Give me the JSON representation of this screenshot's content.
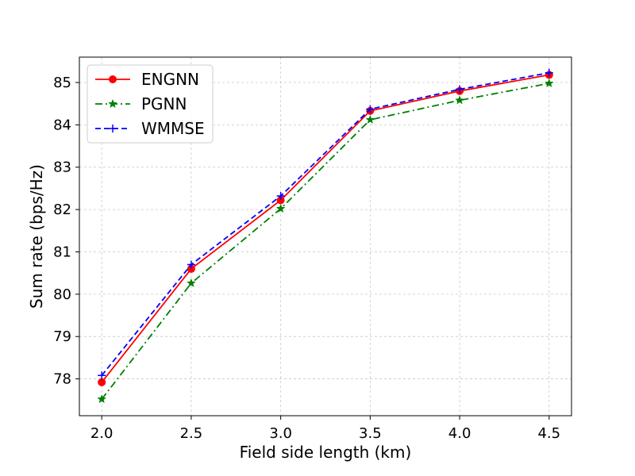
{
  "chart_data": {
    "type": "line",
    "title": "",
    "xlabel": "Field side length (km)",
    "ylabel": "Sum rate (bps/Hz)",
    "x": [
      2.0,
      2.5,
      3.0,
      3.5,
      4.0,
      4.5
    ],
    "x_tick_labels": [
      "2.0",
      "2.5",
      "3.0",
      "3.5",
      "4.0",
      "4.5"
    ],
    "y_ticks": [
      78,
      79,
      80,
      81,
      82,
      83,
      84,
      85
    ],
    "y_tick_labels": [
      "78",
      "79",
      "80",
      "81",
      "82",
      "83",
      "84",
      "85"
    ],
    "xlim": [
      1.875,
      4.625
    ],
    "ylim": [
      77.13,
      85.6
    ],
    "grid": true,
    "legend_position": "top-left",
    "series": [
      {
        "name": "ENGNN",
        "values": [
          77.92,
          80.6,
          82.22,
          84.33,
          84.8,
          85.18
        ],
        "color": "#ff0000",
        "line_style": "solid",
        "marker": "circle"
      },
      {
        "name": "PGNN",
        "values": [
          77.52,
          80.26,
          82.02,
          84.12,
          84.58,
          84.98
        ],
        "color": "#008000",
        "line_style": "dashdot",
        "marker": "star"
      },
      {
        "name": "WMMSE",
        "values": [
          78.08,
          80.7,
          82.32,
          84.37,
          84.84,
          85.23
        ],
        "color": "#0000ff",
        "line_style": "dashed",
        "marker": "plus"
      }
    ]
  }
}
